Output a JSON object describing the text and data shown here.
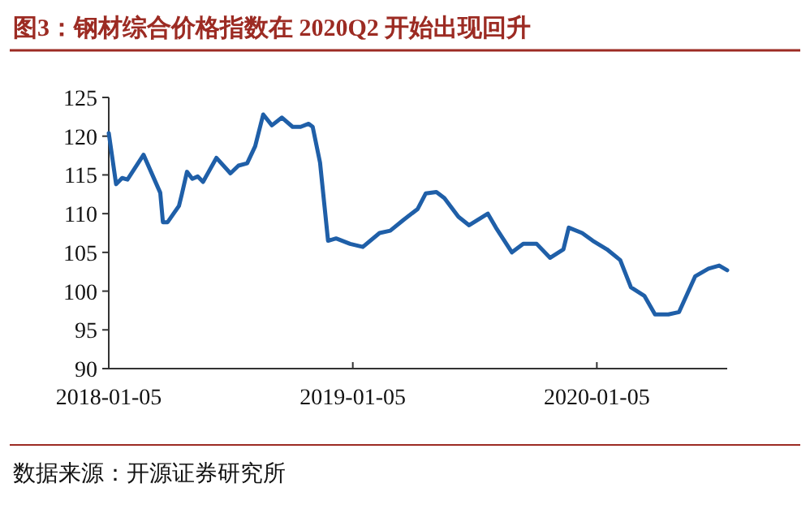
{
  "chart_data": {
    "type": "line",
    "title": "图3：钢材综合价格指数在 2020Q2 开始出现回升",
    "annotations": [
      "数据来源：开源证券研究所"
    ],
    "x": [
      "2018-01-05",
      "2018-01-16",
      "2018-01-25",
      "2018-02-02",
      "2018-02-26",
      "2018-03-23",
      "2018-03-27",
      "2018-04-03",
      "2018-04-20",
      "2018-04-24",
      "2018-05-02",
      "2018-05-10",
      "2018-05-18",
      "2018-05-26",
      "2018-06-15",
      "2018-07-06",
      "2018-07-18",
      "2018-07-31",
      "2018-08-12",
      "2018-08-24",
      "2018-09-06",
      "2018-09-21",
      "2018-10-07",
      "2018-10-19",
      "2018-10-31",
      "2018-11-06",
      "2018-11-17",
      "2018-11-29",
      "2018-12-11",
      "2019-01-01",
      "2019-01-20",
      "2019-02-14",
      "2019-03-02",
      "2019-03-22",
      "2019-04-12",
      "2019-04-24",
      "2019-05-10",
      "2019-05-22",
      "2019-06-12",
      "2019-06-28",
      "2019-07-26",
      "2019-08-07",
      "2019-08-31",
      "2019-09-17",
      "2019-10-07",
      "2019-10-27",
      "2019-11-16",
      "2019-11-24",
      "2019-12-14",
      "2019-12-30",
      "2020-01-20",
      "2020-02-09",
      "2020-02-25",
      "2020-03-16",
      "2020-04-01",
      "2020-04-21",
      "2020-05-07",
      "2020-05-31",
      "2020-06-20",
      "2020-07-06",
      "2020-07-18"
    ],
    "series": [
      {
        "color": "#1f5fa8",
        "values": [
          120.4,
          113.8,
          114.6,
          114.4,
          117.6,
          112.7,
          108.9,
          108.9,
          111.0,
          112.4,
          115.4,
          114.5,
          114.8,
          114.1,
          117.2,
          115.2,
          116.2,
          116.5,
          118.7,
          122.8,
          121.4,
          122.4,
          121.2,
          121.2,
          121.6,
          121.2,
          116.6,
          106.5,
          106.8,
          106.1,
          105.7,
          107.5,
          107.8,
          109.2,
          110.6,
          112.6,
          112.8,
          112.0,
          109.6,
          108.5,
          110.0,
          108.2,
          105.0,
          106.1,
          106.1,
          104.3,
          105.4,
          108.2,
          107.5,
          106.5,
          105.4,
          104.0,
          100.5,
          99.4,
          97.0,
          97.0,
          97.3,
          101.9,
          102.9,
          103.3,
          102.7
        ]
      }
    ],
    "xlim": [
      "2018-01-05",
      "2020-07-18"
    ],
    "xticks": [
      "2018-01-05",
      "2019-01-05",
      "2020-01-05"
    ],
    "ylim": [
      90,
      125
    ],
    "yticks": [
      90,
      95,
      100,
      105,
      110,
      115,
      120,
      125
    ],
    "grid": false,
    "marker": "none",
    "line_style": "solid"
  }
}
